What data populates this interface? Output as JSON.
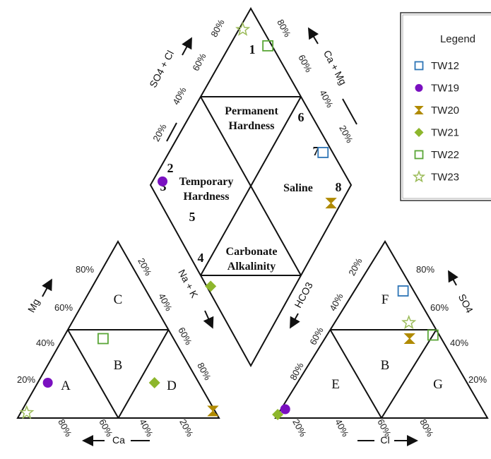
{
  "chart_data": {
    "type": "scatter",
    "subtype": "piper-diagram",
    "title": "",
    "legend": {
      "title": "Legend",
      "placement": "top-right",
      "entries": [
        {
          "name": "TW12",
          "marker": "open-square",
          "color": "#2e75b6"
        },
        {
          "name": "TW19",
          "marker": "filled-circle",
          "color": "#7a10c0"
        },
        {
          "name": "TW20",
          "marker": "hourglass",
          "color": "#b08a00"
        },
        {
          "name": "TW21",
          "marker": "filled-diamond",
          "color": "#8db62c"
        },
        {
          "name": "TW22",
          "marker": "open-square",
          "color": "#5aa637"
        },
        {
          "name": "TW23",
          "marker": "open-star",
          "color": "#9bbb59"
        }
      ]
    },
    "ticks": [
      "20%",
      "40%",
      "60%",
      "80%"
    ],
    "cation_triangle": {
      "axis_labels": {
        "bottom": "Ca",
        "left": "Mg",
        "right": "Na + K"
      },
      "fields": [
        "A",
        "B",
        "C",
        "D"
      ],
      "points": [
        {
          "series": "TW19",
          "Ca": 75,
          "Mg": 20,
          "NaK": 5
        },
        {
          "series": "TW20",
          "Ca": 1,
          "Mg": 4,
          "NaK": 95
        },
        {
          "series": "TW21",
          "Ca": 22,
          "Mg": 20,
          "NaK": 58
        },
        {
          "series": "TW22",
          "Ca": 35,
          "Mg": 45,
          "NaK": 20
        },
        {
          "series": "TW23",
          "Ca": 94,
          "Mg": 3,
          "NaK": 3
        }
      ]
    },
    "anion_triangle": {
      "axis_labels": {
        "bottom": "Cl",
        "left": "HCO3",
        "right": "SO4"
      },
      "fields": [
        "B",
        "E",
        "F",
        "G"
      ],
      "points": [
        {
          "series": "TW12",
          "Cl": 23,
          "SO4": 72,
          "HCO3": 5
        },
        {
          "series": "TW19",
          "Cl": 2,
          "SO4": 5,
          "HCO3": 93
        },
        {
          "series": "TW20",
          "Cl": 40,
          "SO4": 45,
          "HCO3": 15
        },
        {
          "series": "TW21",
          "Cl": 0,
          "SO4": 2,
          "HCO3": 98
        },
        {
          "series": "TW22",
          "Cl": 50,
          "SO4": 47,
          "HCO3": 3
        },
        {
          "series": "TW23",
          "Cl": 35,
          "SO4": 54,
          "HCO3": 11
        }
      ]
    },
    "diamond": {
      "axis_labels": {
        "upper_left": "SO4 + Cl",
        "upper_right": "Ca + Mg",
        "lower_left": "Na + K",
        "lower_right": "HCO3"
      },
      "regions": [
        "Permanent Hardness",
        "Temporary Hardness",
        "Saline",
        "Carbonate Alkalinity"
      ],
      "zone_numbers": [
        "1",
        "2",
        "3",
        "4",
        "5",
        "6",
        "7",
        "8"
      ],
      "points": [
        {
          "series": "TW12",
          "SO4_Cl": 95,
          "Ca_Mg": 23
        },
        {
          "series": "TW19",
          "SO4_Cl": 7,
          "Ca_Mg": 95
        },
        {
          "series": "TW20",
          "SO4_Cl": 85,
          "Ca_Mg": 5
        },
        {
          "series": "TW21",
          "SO4_Cl": 2,
          "Ca_Mg": 42
        },
        {
          "series": "TW22",
          "SO4_Cl": 97,
          "Ca_Mg": 80
        },
        {
          "series": "TW23",
          "SO4_Cl": 89,
          "Ca_Mg": 97
        }
      ]
    }
  }
}
